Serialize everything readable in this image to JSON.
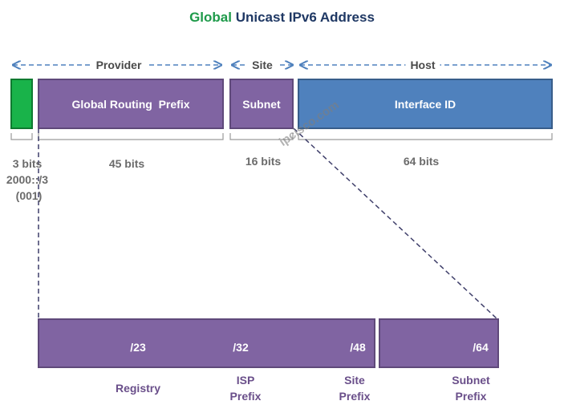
{
  "title": {
    "accent": "Global",
    "rest": "Unicast IPv6 Address"
  },
  "segments": {
    "provider": "Provider",
    "site": "Site",
    "host": "Host"
  },
  "boxes": {
    "routing_prefix": "Global Routing  Prefix",
    "subnet": "Subnet",
    "interface_id": "Interface ID"
  },
  "bits": {
    "fixed": "3 bits",
    "routing": "45 bits",
    "subnet": "16 bits",
    "interface": "64 bits"
  },
  "fixed_prefix": {
    "value": "2000::/3",
    "binary": "(001)"
  },
  "markers": [
    "/23",
    "/32",
    "/48",
    "/64"
  ],
  "captions": {
    "registry": "Registry",
    "isp_1": "ISP",
    "isp_2": "Prefix",
    "site_1": "Site",
    "site_2": "Prefix",
    "subnet_1": "Subnet",
    "subnet_2": "Prefix"
  },
  "watermark": "ipcisco.com",
  "colors": {
    "purple": "#8064a2",
    "blue": "#4f81bd",
    "green": "#19b34a",
    "arrow": "#4f81bd"
  }
}
